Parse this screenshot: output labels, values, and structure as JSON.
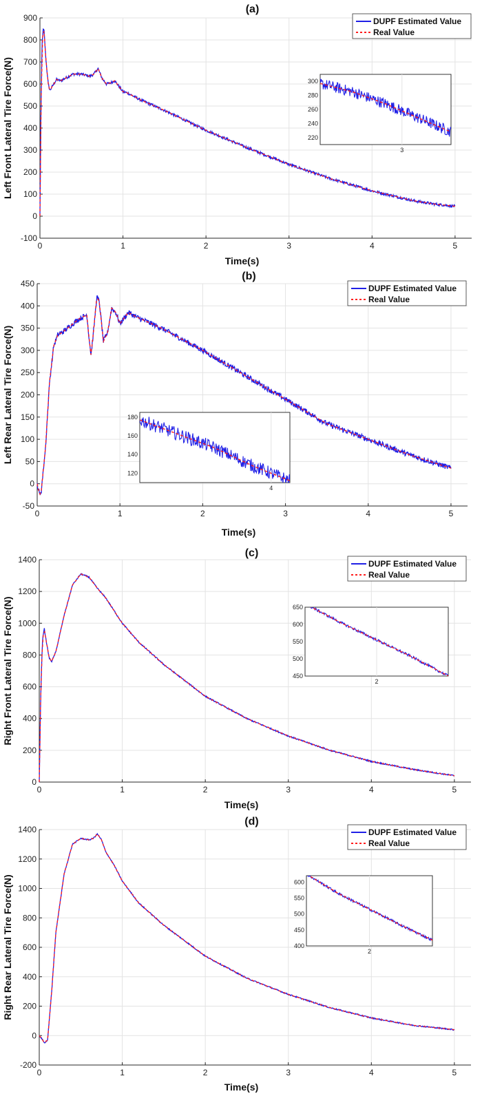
{
  "legend": {
    "estimated": "DUPF Estimated Value",
    "real": "Real Value"
  },
  "colors": {
    "estimated": "#1f1fe6",
    "real": "#ff1a1a",
    "grid": "#e3e3e3",
    "axis": "#262626"
  },
  "chart_data": [
    {
      "type": "line",
      "title": "(a)",
      "xlabel": "Time(s)",
      "ylabel": "Left Front Lateral Tire Force(N)",
      "xlim": [
        0,
        5.2
      ],
      "ylim": [
        -100,
        900
      ],
      "xticks": [
        0,
        1,
        2,
        3,
        4,
        5
      ],
      "yticks": [
        -100,
        0,
        100,
        200,
        300,
        400,
        500,
        600,
        700,
        800,
        900
      ],
      "legend_position": "top-right",
      "noise": 6,
      "series": [
        {
          "name": "Real Value",
          "x": [
            0,
            0.01,
            0.025,
            0.04,
            0.05,
            0.07,
            0.1,
            0.12,
            0.15,
            0.2,
            0.25,
            0.3,
            0.4,
            0.5,
            0.6,
            0.65,
            0.7,
            0.75,
            0.8,
            0.85,
            0.9,
            0.95,
            1.0,
            1.05,
            1.1,
            1.2,
            1.5,
            2.0,
            2.5,
            3.0,
            3.5,
            4.0,
            4.5,
            4.75,
            5.0
          ],
          "y": [
            0,
            400,
            780,
            850,
            840,
            720,
            600,
            570,
            590,
            620,
            615,
            625,
            645,
            645,
            635,
            645,
            670,
            625,
            600,
            605,
            615,
            590,
            565,
            560,
            550,
            530,
            480,
            390,
            310,
            235,
            170,
            115,
            70,
            55,
            45
          ]
        }
      ],
      "inset": {
        "xlim": [
          2.5,
          3.3
        ],
        "ylim": [
          210,
          310
        ],
        "xticks": [
          3
        ],
        "yticks": [
          220,
          240,
          260,
          280,
          300
        ],
        "noise": 8,
        "x": [
          2.5,
          2.7,
          2.9,
          3.1,
          3.3
        ],
        "y": [
          297,
          285,
          268,
          248,
          228
        ]
      }
    },
    {
      "type": "line",
      "title": "(b)",
      "xlabel": "Time(s)",
      "ylabel": "Left Rear Lateral Tire Force(N)",
      "xlim": [
        0,
        5.2
      ],
      "ylim": [
        -50,
        450
      ],
      "xticks": [
        0,
        1,
        2,
        3,
        4,
        5
      ],
      "yticks": [
        -50,
        0,
        50,
        100,
        150,
        200,
        250,
        300,
        350,
        400,
        450
      ],
      "legend_position": "top-right",
      "noise": 6,
      "series": [
        {
          "name": "Real Value",
          "x": [
            0,
            0.03,
            0.05,
            0.1,
            0.15,
            0.2,
            0.25,
            0.3,
            0.4,
            0.5,
            0.6,
            0.62,
            0.65,
            0.68,
            0.72,
            0.75,
            0.8,
            0.85,
            0.9,
            0.95,
            1.0,
            1.1,
            1.2,
            1.5,
            2.0,
            2.5,
            3.0,
            3.5,
            4.0,
            4.5,
            5.0
          ],
          "y": [
            0,
            -25,
            -15,
            80,
            230,
            310,
            335,
            340,
            355,
            370,
            380,
            340,
            290,
            340,
            420,
            410,
            320,
            340,
            395,
            385,
            360,
            385,
            375,
            350,
            300,
            245,
            190,
            135,
            100,
            65,
            35
          ]
        }
      ],
      "inset": {
        "xlim": [
          3.3,
          4.1
        ],
        "ylim": [
          110,
          185
        ],
        "xticks": [
          4
        ],
        "yticks": [
          120,
          140,
          160,
          180
        ],
        "noise": 7,
        "x": [
          3.3,
          3.5,
          3.7,
          3.9,
          4.1
        ],
        "y": [
          177,
          162,
          147,
          128,
          112
        ]
      }
    },
    {
      "type": "line",
      "title": "(c)",
      "xlabel": "Time(s)",
      "ylabel": "Right Front Lateral Tire Force(N)",
      "xlim": [
        0,
        5.2
      ],
      "ylim": [
        0,
        1400
      ],
      "xticks": [
        0,
        1,
        2,
        3,
        4,
        5
      ],
      "yticks": [
        0,
        200,
        400,
        600,
        800,
        1000,
        1200,
        1400
      ],
      "legend_position": "top-right",
      "noise": 4,
      "series": [
        {
          "name": "Real Value",
          "x": [
            0,
            0.02,
            0.04,
            0.06,
            0.08,
            0.12,
            0.15,
            0.2,
            0.3,
            0.4,
            0.5,
            0.6,
            0.7,
            0.8,
            0.9,
            1.0,
            1.2,
            1.5,
            2.0,
            2.5,
            3.0,
            3.5,
            4.0,
            4.5,
            5.0
          ],
          "y": [
            0,
            600,
            900,
            970,
            900,
            780,
            760,
            820,
            1050,
            1240,
            1310,
            1290,
            1220,
            1160,
            1080,
            1000,
            880,
            740,
            540,
            400,
            290,
            200,
            130,
            80,
            40
          ]
        }
      ],
      "inset": {
        "xlim": [
          1.6,
          2.4
        ],
        "ylim": [
          450,
          650
        ],
        "xticks": [
          2
        ],
        "yticks": [
          450,
          500,
          550,
          600,
          650
        ],
        "noise": 4,
        "x": [
          1.6,
          1.8,
          2.0,
          2.2,
          2.4
        ],
        "y": [
          660,
          605,
          555,
          505,
          450
        ]
      }
    },
    {
      "type": "line",
      "title": "(d)",
      "xlabel": "Time(s)",
      "ylabel": "Right Rear Lateral Tire Force(N)",
      "xlim": [
        0,
        5.2
      ],
      "ylim": [
        -200,
        1400
      ],
      "xticks": [
        0,
        1,
        2,
        3,
        4,
        5
      ],
      "yticks": [
        -200,
        0,
        200,
        400,
        600,
        800,
        1000,
        1200,
        1400
      ],
      "legend_position": "top-right",
      "noise": 4,
      "series": [
        {
          "name": "Real Value",
          "x": [
            0,
            0.03,
            0.06,
            0.1,
            0.15,
            0.2,
            0.3,
            0.4,
            0.5,
            0.6,
            0.65,
            0.7,
            0.75,
            0.8,
            0.9,
            1.0,
            1.2,
            1.5,
            2.0,
            2.5,
            3.0,
            3.5,
            4.0,
            4.5,
            5.0
          ],
          "y": [
            0,
            -20,
            -50,
            -30,
            300,
            700,
            1100,
            1300,
            1340,
            1330,
            1340,
            1370,
            1330,
            1250,
            1160,
            1050,
            900,
            750,
            540,
            390,
            280,
            190,
            120,
            70,
            40
          ]
        }
      ],
      "inset": {
        "xlim": [
          1.6,
          2.4
        ],
        "ylim": [
          400,
          620
        ],
        "xticks": [
          2
        ],
        "yticks": [
          400,
          450,
          500,
          550,
          600
        ],
        "noise": 4,
        "x": [
          1.6,
          1.8,
          2.0,
          2.2,
          2.4
        ],
        "y": [
          625,
          565,
          515,
          465,
          418
        ]
      }
    }
  ]
}
